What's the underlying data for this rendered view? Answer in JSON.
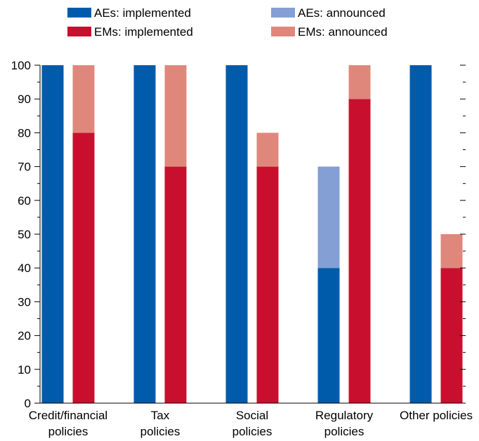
{
  "chart_data": {
    "type": "bar",
    "stacked": true,
    "categories": [
      [
        "Credit/financial",
        "policies"
      ],
      [
        "Tax",
        "policies"
      ],
      [
        "Social",
        "policies"
      ],
      [
        "Regulatory",
        "policies"
      ],
      [
        "Other policies"
      ]
    ],
    "groups": [
      "AEs",
      "EMs"
    ],
    "series": [
      {
        "name": "AEs: implemented",
        "group": "AEs",
        "color": "#005bab",
        "values": [
          100,
          100,
          100,
          40,
          100
        ]
      },
      {
        "name": "AEs: announced",
        "group": "AEs",
        "color": "#839fd4",
        "values": [
          0,
          0,
          0,
          30,
          0
        ]
      },
      {
        "name": "EMs: implemented",
        "group": "EMs",
        "color": "#c8102e",
        "values": [
          80,
          70,
          70,
          90,
          40
        ]
      },
      {
        "name": "EMs: announced",
        "group": "EMs",
        "color": "#e0877c",
        "values": [
          20,
          30,
          10,
          10,
          10
        ]
      }
    ],
    "ylim": [
      0,
      100
    ],
    "yticks": [
      0,
      10,
      20,
      30,
      40,
      50,
      60,
      70,
      80,
      90,
      100
    ],
    "ytick_labels": [
      "0",
      "10",
      "20",
      "30",
      "40",
      "50",
      "60",
      "70",
      "80",
      "90",
      "100"
    ],
    "minor_ticks": true,
    "grid": false,
    "legend_position": "top"
  }
}
